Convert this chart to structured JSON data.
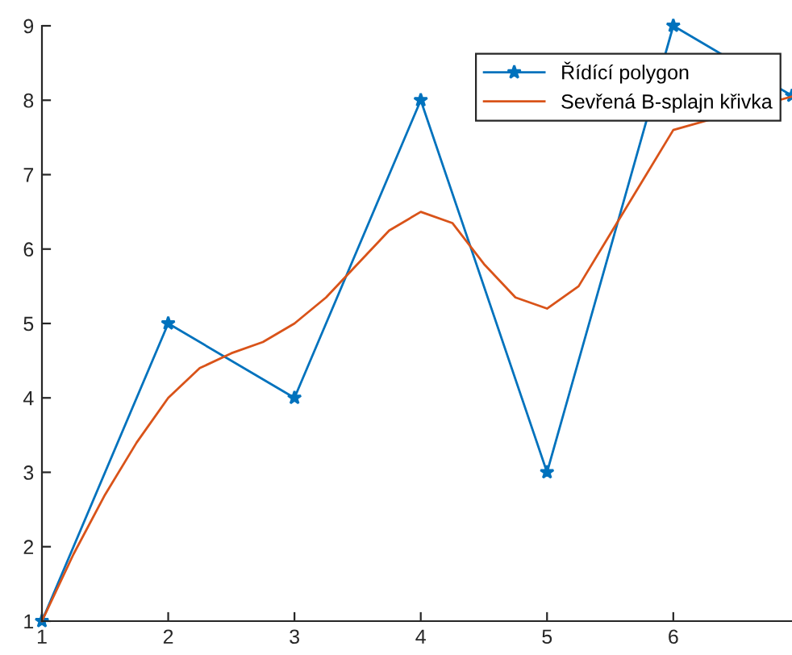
{
  "chart_data": {
    "type": "line",
    "series": [
      {
        "name": "Řídící polygon",
        "color": "#0072bd",
        "marker": "star",
        "x": [
          1,
          2,
          3,
          4,
          5,
          6,
          6.94
        ],
        "values": [
          1,
          5,
          4,
          8,
          3,
          9,
          8.06
        ]
      },
      {
        "name": "Sevřená B-splajn křivka",
        "color": "#d95319",
        "marker": "none",
        "x": [
          1,
          1.25,
          1.5,
          1.75,
          2,
          2.25,
          2.5,
          2.75,
          3,
          3.25,
          3.5,
          3.75,
          4,
          4.25,
          4.5,
          4.75,
          5,
          5.25,
          5.5,
          5.75,
          6,
          6.94
        ],
        "values": [
          1,
          1.9,
          2.7,
          3.4,
          4.0,
          4.4,
          4.6,
          4.75,
          5.0,
          5.35,
          5.8,
          6.25,
          6.5,
          6.35,
          5.8,
          5.35,
          5.2,
          5.5,
          6.2,
          6.9,
          7.6,
          8.05
        ]
      }
    ],
    "xlim": [
      1,
      6.94
    ],
    "xticks": [
      1,
      2,
      3,
      4,
      5,
      6
    ],
    "ylim": [
      1,
      9
    ],
    "yticks": [
      1,
      2,
      3,
      4,
      5,
      6,
      7,
      8,
      9
    ],
    "grid": false,
    "legend": "top right",
    "line_style": "solid"
  }
}
